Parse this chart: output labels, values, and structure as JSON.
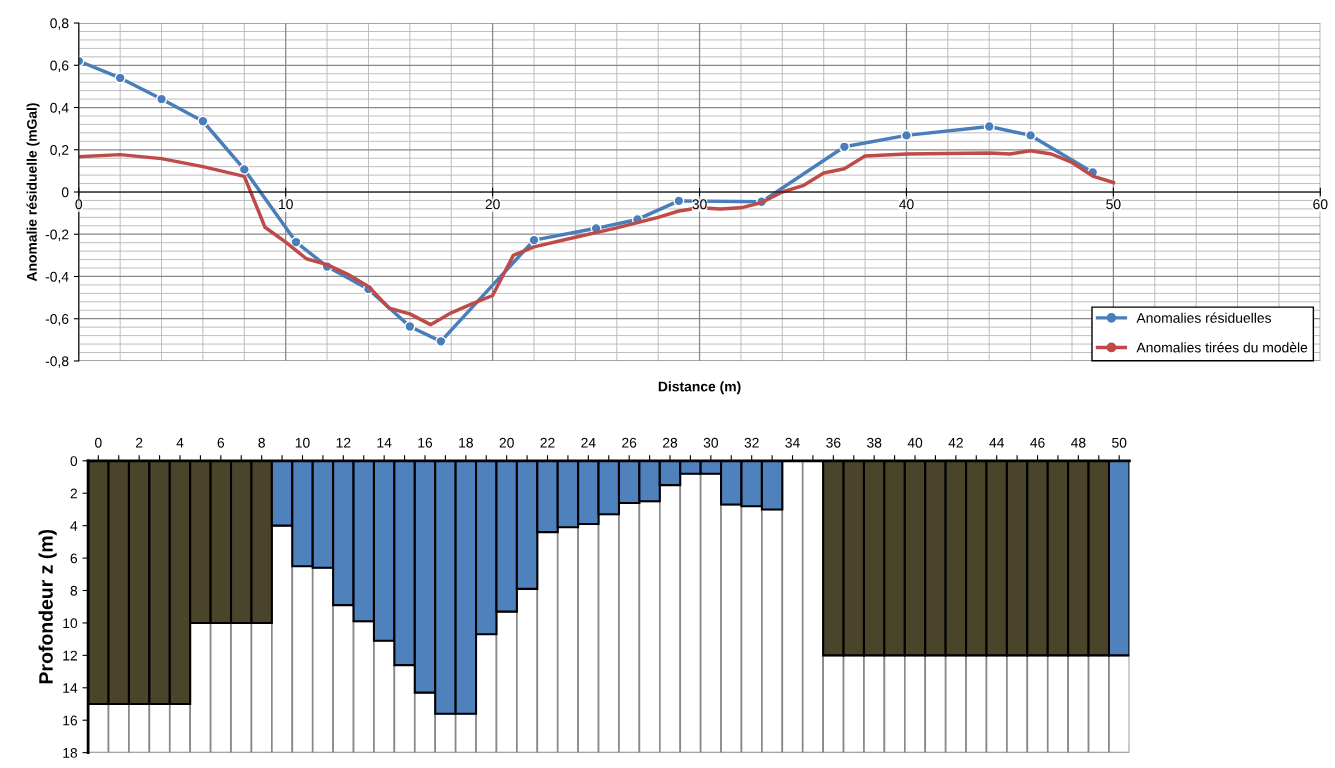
{
  "chart_data": [
    {
      "type": "line",
      "xlabel": "Distance (m)",
      "ylabel": "Anomalie résiduelle (mGal)",
      "xlim": [
        0,
        60
      ],
      "ylim": [
        -0.8,
        0.8
      ],
      "xticks": [
        0,
        10,
        20,
        30,
        40,
        50,
        60
      ],
      "yticks": [
        {
          "value": -0.8,
          "label": "-0,8"
        },
        {
          "value": -0.6,
          "label": "-0,6"
        },
        {
          "value": -0.4,
          "label": "-0,4"
        },
        {
          "value": -0.2,
          "label": "-0,2"
        },
        0,
        {
          "value": 0.2,
          "label": "0,2"
        },
        {
          "value": 0.4,
          "label": "0,4"
        },
        {
          "value": 0.6,
          "label": "0,6"
        },
        {
          "value": 0.8,
          "label": "0,8"
        }
      ],
      "grid": true,
      "legend": "bottom right",
      "line_style": "solid",
      "series": [
        {
          "name": "Anomalies résiduelles",
          "color": "#4a7ebb",
          "marker": "circle",
          "x": [
            0,
            2,
            4,
            6,
            8,
            10.5,
            12,
            14,
            16,
            17.5,
            22,
            25,
            27,
            29,
            33,
            37,
            40,
            44,
            46,
            49
          ],
          "values": [
            0.62,
            0.54,
            0.44,
            0.335,
            0.107,
            -0.237,
            -0.353,
            -0.46,
            -0.637,
            -0.707,
            -0.228,
            -0.172,
            -0.13,
            -0.042,
            -0.046,
            0.214,
            0.268,
            0.31,
            0.268,
            0.093
          ]
        },
        {
          "name": "Anomalies tirées du modèle",
          "color": "#be4b48",
          "marker": "none",
          "x": [
            0,
            2,
            4,
            6,
            8,
            9,
            10,
            11,
            12,
            13,
            14,
            15,
            16,
            17,
            18,
            19,
            20,
            21,
            22,
            24,
            26,
            28,
            29,
            30,
            31,
            32,
            33,
            34,
            35,
            36,
            37,
            38,
            40,
            44,
            45,
            46,
            47,
            48,
            49,
            50
          ],
          "values": [
            0.167,
            0.177,
            0.158,
            0.12,
            0.074,
            -0.167,
            -0.237,
            -0.316,
            -0.344,
            -0.39,
            -0.447,
            -0.55,
            -0.577,
            -0.628,
            -0.572,
            -0.53,
            -0.49,
            -0.3,
            -0.26,
            -0.214,
            -0.17,
            -0.12,
            -0.09,
            -0.075,
            -0.08,
            -0.075,
            -0.05,
            0.0,
            0.03,
            0.09,
            0.11,
            0.17,
            0.18,
            0.185,
            0.18,
            0.195,
            0.18,
            0.14,
            0.075,
            0.045
          ]
        }
      ]
    },
    {
      "type": "bar",
      "stacked": true,
      "ylabel": "Profondeur z (m)",
      "ylim": [
        18,
        0
      ],
      "yticks": [
        0,
        2,
        4,
        6,
        8,
        10,
        12,
        14,
        16,
        18
      ],
      "categories": [
        "0",
        null,
        "2",
        null,
        "4",
        null,
        "6",
        null,
        "8",
        null,
        "10",
        null,
        "12",
        null,
        "14",
        null,
        "16",
        null,
        "18",
        null,
        "20",
        null,
        "22",
        null,
        "24",
        null,
        "26",
        null,
        "28",
        null,
        "30",
        null,
        "32",
        null,
        "34",
        null,
        "36",
        null,
        "38",
        null,
        "40",
        null,
        "42",
        null,
        "44",
        null,
        "46",
        null,
        "48",
        null,
        "50"
      ],
      "series": [
        {
          "colors": [
            "#4a442a",
            "#4a442a",
            "#4a442a",
            "#4a442a",
            "#4a442a",
            "#4a442a",
            "#4a442a",
            "#4a442a",
            "#4a442a",
            "#4f81bd",
            "#4f81bd",
            "#4f81bd",
            "#4f81bd",
            "#4f81bd",
            "#4f81bd",
            "#4f81bd",
            "#4f81bd",
            "#4f81bd",
            "#4f81bd",
            "#4f81bd",
            "#4f81bd",
            "#4f81bd",
            "#4f81bd",
            "#4f81bd",
            "#4f81bd",
            "#4f81bd",
            "#4f81bd",
            "#4f81bd",
            "#4f81bd",
            "#4f81bd",
            "#4f81bd",
            "#4f81bd",
            "#4f81bd",
            "#4f81bd",
            "#4f81bd",
            "#4f81bd",
            "#4a442a",
            "#4a442a",
            "#4a442a",
            "#4a442a",
            "#4a442a",
            "#4a442a",
            "#4a442a",
            "#4a442a",
            "#4a442a",
            "#4a442a",
            "#4a442a",
            "#4a442a",
            "#4a442a",
            "#4a442a",
            "#4f81bd"
          ],
          "values": [
            15,
            15,
            15,
            15,
            15,
            10,
            10,
            10,
            10,
            4,
            6.5,
            6.6,
            8.9,
            9.9,
            11.1,
            12.6,
            14.3,
            15.6,
            15.6,
            10.7,
            9.3,
            7.9,
            4.4,
            4.1,
            3.9,
            3.3,
            2.6,
            2.5,
            1.5,
            0.8,
            0.8,
            2.7,
            2.8,
            3,
            0,
            0,
            12,
            12,
            12,
            12,
            12,
            12,
            12,
            12,
            12,
            12,
            12,
            12,
            12,
            12,
            12
          ]
        },
        {
          "color": "#ffffff",
          "values": [
            3,
            3,
            3,
            3,
            3,
            8,
            8,
            8,
            8,
            14,
            11.5,
            11.4,
            9.1,
            8.1,
            6.9,
            5.4,
            3.7,
            2.4,
            2.4,
            7.3,
            8.7,
            10.1,
            13.6,
            13.9,
            14.1,
            14.7,
            15.4,
            15.5,
            16.5,
            17.2,
            17.2,
            15.3,
            15.2,
            15,
            18,
            18,
            6,
            6,
            6,
            6,
            6,
            6,
            6,
            6,
            6,
            6,
            6,
            6,
            6,
            6,
            6
          ]
        }
      ]
    }
  ]
}
